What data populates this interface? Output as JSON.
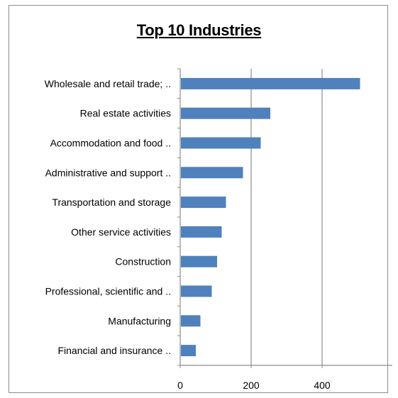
{
  "chart_data": {
    "type": "bar",
    "orientation": "horizontal",
    "title": "Top 10 Industries",
    "xlabel": "",
    "ylabel": "",
    "categories": [
      "Wholesale and retail trade; ..",
      "Real estate activities",
      "Accommodation and food ..",
      "Administrative and support ..",
      "Transportation and storage",
      "Other service activities",
      "Construction",
      "Professional, scientific and ..",
      "Manufacturing",
      "Financial and insurance .."
    ],
    "values": [
      505,
      252,
      225,
      175,
      127,
      115,
      102,
      87,
      55,
      42
    ],
    "xlim": [
      0,
      550
    ],
    "xticks": [
      "0",
      "200",
      "400"
    ],
    "xtick_values": [
      0,
      200,
      400
    ],
    "grid": "vertical",
    "bar_color": "#4f81bd"
  }
}
